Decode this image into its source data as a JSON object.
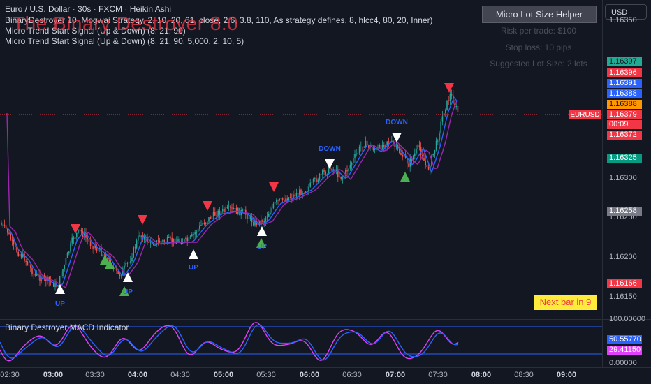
{
  "legend": {
    "symbol_line": "Euro / U.S. Dollar · 30s · FXCM · Heikin Ashi",
    "indicator1": "BinaryDestroyer 10, Mogwai Strategy, 2, 10, 20, 61, close, 2.6, 3.8, 110, As strategy defines, 8, hlcc4, 80, 20, Inner)",
    "indicator2": "Micro Trend Start Signal (Up & Down) (8, 21, 90)",
    "indicator3": "Micro Trend Start Signal (Up & Down) (8, 21, 90, 5,000, 2, 10, 5)"
  },
  "watermark_title": "The Binary Destroyer 8.0",
  "helper": {
    "button_label": "Micro Lot Size Helper",
    "risk": "Risk per trade: $100",
    "stop": "Stop loss: 10 pips",
    "lot": "Suggested Lot Size: 2 lots"
  },
  "currency_button": "USD",
  "price_axis": {
    "ticks": [
      "1.16350",
      "1.16300",
      "1.16250",
      "1.16200",
      "1.16150"
    ],
    "labels": [
      {
        "text": "1.16397",
        "color": "#22ab94",
        "fg": "#131722"
      },
      {
        "text": "1.16396",
        "color": "#f23645",
        "fg": "#ffffff"
      },
      {
        "text": "1.16391",
        "color": "#2962ff",
        "fg": "#ffffff"
      },
      {
        "text": "1.16388",
        "color": "#2962ff",
        "fg": "#ffffff"
      },
      {
        "text": "1.16388",
        "color": "#ff9800",
        "fg": "#131722"
      },
      {
        "text": "1.16379",
        "color": "#f23645",
        "fg": "#ffffff"
      },
      {
        "text": "00:09",
        "color": "#f23645",
        "fg": "#ffffff"
      },
      {
        "text": "1.16372",
        "color": "#f23645",
        "fg": "#ffffff"
      },
      {
        "text": "1.16325",
        "color": "#089981",
        "fg": "#ffffff"
      },
      {
        "text": "1.16258",
        "color": "#787b86",
        "fg": "#ffffff"
      },
      {
        "text": "1.16166",
        "color": "#f23645",
        "fg": "#ffffff"
      }
    ],
    "symbol_tag": "EURUSD"
  },
  "oscillator": {
    "title": "Binary Destroyer MACD Indicator",
    "axis_ticks": [
      "100.00000",
      "0.00000"
    ],
    "labels": [
      {
        "text": "50.55770",
        "color": "#2962ff"
      },
      {
        "text": "29.41150",
        "color": "#e040fb"
      }
    ]
  },
  "time_axis": {
    "ticks": [
      {
        "text": "02:30",
        "bold": false
      },
      {
        "text": "03:00",
        "bold": true
      },
      {
        "text": "03:30",
        "bold": false
      },
      {
        "text": "04:00",
        "bold": true
      },
      {
        "text": "04:30",
        "bold": false
      },
      {
        "text": "05:00",
        "bold": true
      },
      {
        "text": "05:30",
        "bold": false
      },
      {
        "text": "06:00",
        "bold": true
      },
      {
        "text": "06:30",
        "bold": false
      },
      {
        "text": "07:00",
        "bold": true
      },
      {
        "text": "07:30",
        "bold": false
      },
      {
        "text": "08:00",
        "bold": true
      },
      {
        "text": "08:30",
        "bold": false
      },
      {
        "text": "09:00",
        "bold": true
      }
    ]
  },
  "signal_labels": {
    "up": "UP",
    "down": "DOWN"
  },
  "next_bar": "Next bar in 9",
  "colors": {
    "bull": "#26a69a",
    "bear": "#ef5350",
    "ma_blue": "#2962ff",
    "ma_purple": "#9c27b0",
    "down_arrow": "#f23645",
    "up_arrow_green": "#4caf50",
    "white_signal": "#ffffff"
  }
}
